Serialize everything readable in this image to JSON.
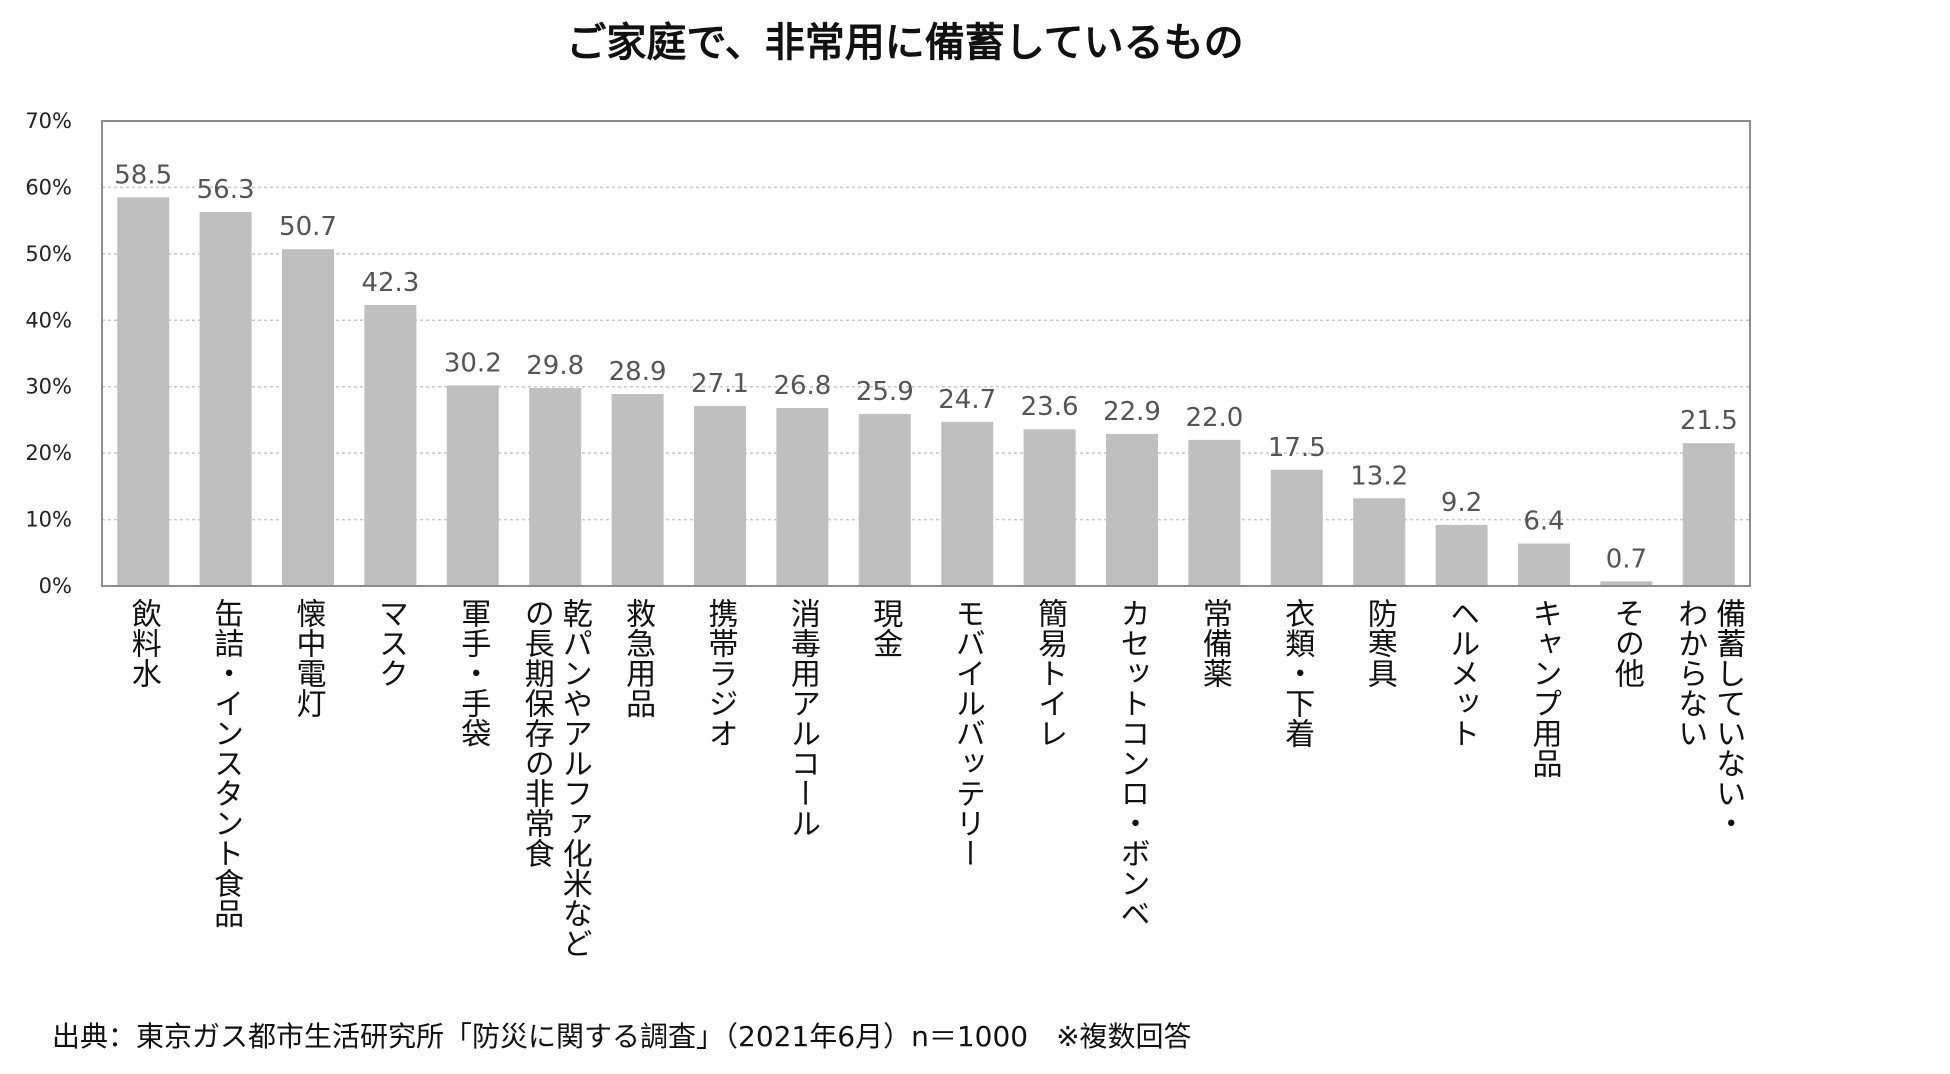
{
  "chart_data": {
    "type": "bar",
    "title": "ご家庭で、非常用に備蓄しているもの",
    "xlabel": "",
    "ylabel": "",
    "ylim": [
      0,
      70
    ],
    "yticks": [
      0,
      10,
      20,
      30,
      40,
      50,
      60,
      70
    ],
    "ytick_labels": [
      "0%",
      "10%",
      "20%",
      "30%",
      "40%",
      "50%",
      "60%",
      "70%"
    ],
    "grid": true,
    "categories": [
      [
        "飲料水"
      ],
      [
        "缶詰・インスタント食品"
      ],
      [
        "懐中電灯"
      ],
      [
        "マスク"
      ],
      [
        "軍手・手袋"
      ],
      [
        "乾パンやアルファ化米など",
        "の長期保存の非常食"
      ],
      [
        "救急用品"
      ],
      [
        "携帯ラジオ"
      ],
      [
        "消毒用アルコール"
      ],
      [
        "現金"
      ],
      [
        "モバイルバッテリー"
      ],
      [
        "簡易トイレ"
      ],
      [
        "カセットコンロ・ボンベ"
      ],
      [
        "常備薬"
      ],
      [
        "衣類・下着"
      ],
      [
        "防寒具"
      ],
      [
        "ヘルメット"
      ],
      [
        "キャンプ用品"
      ],
      [
        "その他"
      ],
      [
        "備蓄していない・",
        "わからない"
      ]
    ],
    "values": [
      58.5,
      56.3,
      50.7,
      42.3,
      30.2,
      29.8,
      28.9,
      27.1,
      26.8,
      25.9,
      24.7,
      23.6,
      22.9,
      22.0,
      17.5,
      13.2,
      9.2,
      6.4,
      0.7,
      21.5
    ],
    "value_labels": [
      "58.5",
      "56.3",
      "50.7",
      "42.3",
      "30.2",
      "29.8",
      "28.9",
      "27.1",
      "26.8",
      "25.9",
      "24.7",
      "23.6",
      "22.9",
      "22.0",
      "17.5",
      "13.2",
      "9.2",
      "6.4",
      "0.7",
      "21.5"
    ],
    "bar_color": "#bfbfbf",
    "source": "出典：東京ガス都市生活研究所「防災に関する調査」（2021年6月）n＝1000　※複数回答"
  }
}
